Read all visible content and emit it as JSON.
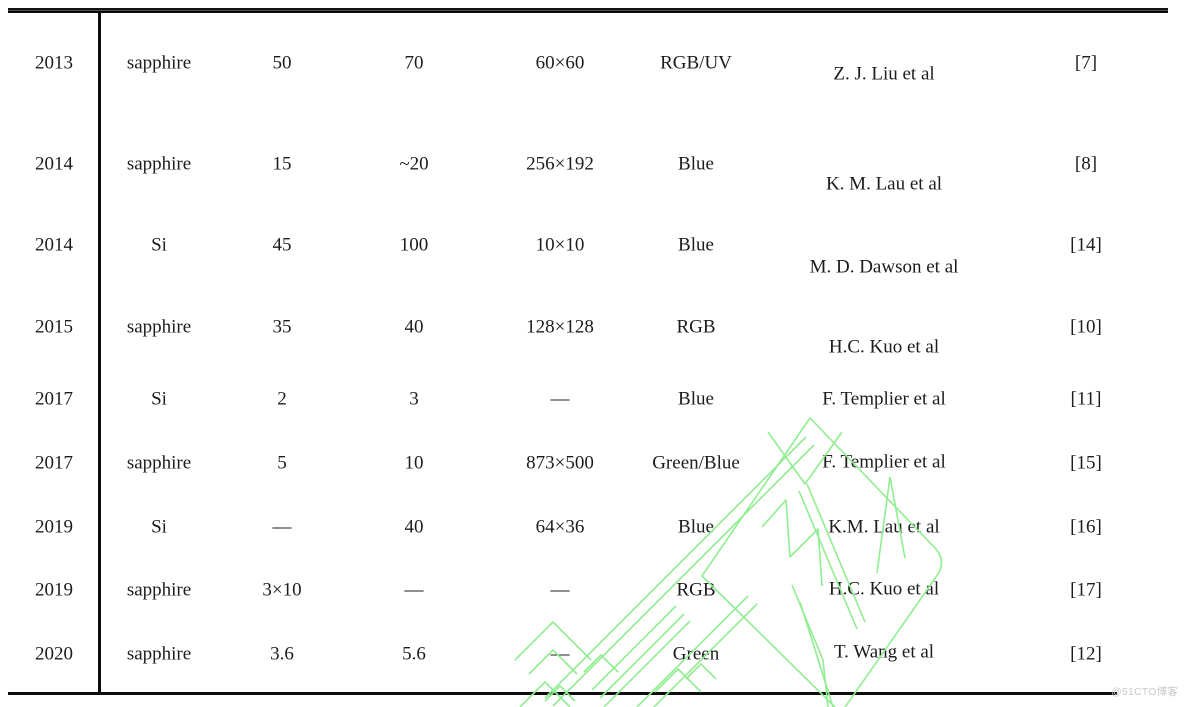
{
  "table": {
    "rows": [
      {
        "cells": [
          "2013",
          "sapphire",
          "50",
          "70",
          "60×60",
          "RGB/UV",
          "Z. J. Liu et al",
          "[7]"
        ]
      },
      {
        "cells": [
          "2014",
          "sapphire",
          "15",
          "~20",
          "256×192",
          "Blue",
          "K. M. Lau et al",
          "[8]"
        ]
      },
      {
        "cells": [
          "2014",
          "Si",
          "45",
          "100",
          "10×10",
          "Blue",
          "M. D. Dawson et al",
          "[14]"
        ]
      },
      {
        "cells": [
          "2015",
          "sapphire",
          "35",
          "40",
          "128×128",
          "RGB",
          "H.C. Kuo et al",
          "[10]"
        ]
      },
      {
        "cells": [
          "2017",
          "Si",
          "2",
          "3",
          "—",
          "Blue",
          "F. Templier et al",
          "[11]"
        ]
      },
      {
        "cells": [
          "2017",
          "sapphire",
          "5",
          "10",
          "873×500",
          "Green/Blue",
          "F. Templier et al",
          "[15]"
        ]
      },
      {
        "cells": [
          "2019",
          "Si",
          "—",
          "40",
          "64×36",
          "Blue",
          "K.M. Lau et al",
          "[16]"
        ]
      },
      {
        "cells": [
          "2019",
          "sapphire",
          "3×10",
          "—",
          "—",
          "RGB",
          "H.C. Kuo et al",
          "[17]"
        ]
      },
      {
        "cells": [
          "2020",
          "sapphire",
          "3.6",
          "5.6",
          "—",
          "Green",
          "T. Wang et al",
          "[12]"
        ]
      }
    ]
  },
  "watermark": {
    "badge_text": "@51CTO博客",
    "badge_color": "#c8c8c8",
    "logo_color": "#90ee90"
  }
}
